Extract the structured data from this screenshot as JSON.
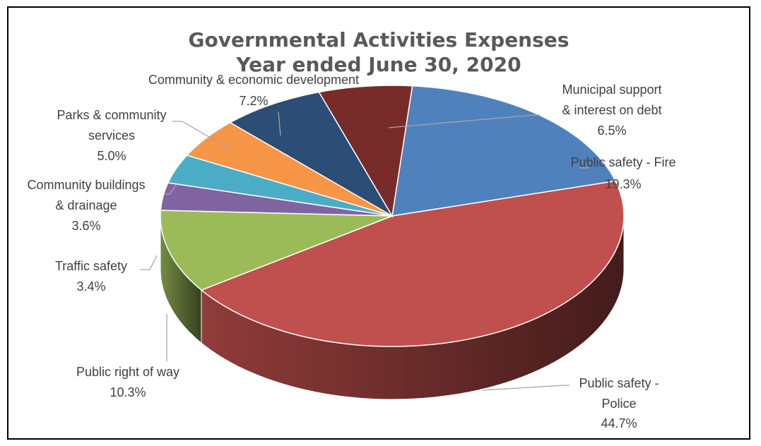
{
  "chart_data": {
    "type": "pie",
    "title": "Governmental Activities Expenses",
    "subtitle": "Year ended June 30, 2020",
    "slices": [
      {
        "key": "fire",
        "name": "Public safety - Fire",
        "label_lines": [
          "Public safety - Fire"
        ],
        "value": 19.3,
        "display": "19.3%",
        "color": "#4F81BD"
      },
      {
        "key": "police",
        "name": "Public safety - Police",
        "label_lines": [
          "Public safety -",
          "Police"
        ],
        "value": 44.7,
        "display": "44.7%",
        "color": "#C0504D"
      },
      {
        "key": "row",
        "name": "Public right of way",
        "label_lines": [
          "Public right of way"
        ],
        "value": 10.3,
        "display": "10.3%",
        "color": "#9BBB59"
      },
      {
        "key": "traffic",
        "name": "Traffic safety",
        "label_lines": [
          "Traffic safety"
        ],
        "value": 3.4,
        "display": "3.4%",
        "color": "#8064A2"
      },
      {
        "key": "buildings",
        "name": "Community buildings & drainage",
        "label_lines": [
          "Community buildings",
          "& drainage"
        ],
        "value": 3.6,
        "display": "3.6%",
        "color": "#4BACC6"
      },
      {
        "key": "parks",
        "name": "Parks & community services",
        "label_lines": [
          "Parks & community",
          "services"
        ],
        "value": 5.0,
        "display": "5.0%",
        "color": "#F79646"
      },
      {
        "key": "econ",
        "name": "Community & economic development",
        "label_lines": [
          "Community & economic development"
        ],
        "value": 7.2,
        "display": "7.2%",
        "color": "#2C4D75"
      },
      {
        "key": "muni",
        "name": "Municipal support & interest on debt",
        "label_lines": [
          "Municipal support",
          "& interest on debt"
        ],
        "value": 6.5,
        "display": "6.5%",
        "color": "#772C2A"
      }
    ]
  }
}
